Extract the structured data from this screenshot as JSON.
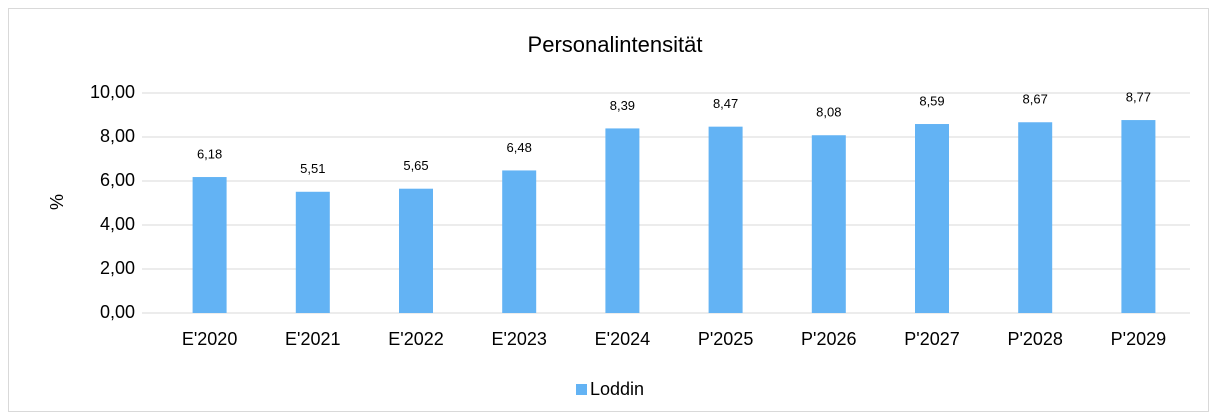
{
  "chart_data": {
    "type": "bar",
    "title": "Personalintensität",
    "y_label": "%",
    "categories": [
      "E'2020",
      "E'2021",
      "E'2022",
      "E'2023",
      "E'2024",
      "P'2025",
      "P'2026",
      "P'2027",
      "P'2028",
      "P'2029"
    ],
    "series": [
      {
        "name": "Loddin",
        "color": "#63b3f4",
        "values": [
          6.18,
          5.51,
          5.65,
          6.48,
          8.39,
          8.47,
          8.08,
          8.59,
          8.67,
          8.77
        ],
        "value_labels": [
          "6,18",
          "5,51",
          "5,65",
          "6,48",
          "8,39",
          "8,47",
          "8,08",
          "8,59",
          "8,67",
          "8,77"
        ]
      }
    ],
    "ylim": [
      0,
      10
    ],
    "yticks": [
      {
        "value": 0,
        "label": "0,00"
      },
      {
        "value": 2,
        "label": "2,00"
      },
      {
        "value": 4,
        "label": "4,00"
      },
      {
        "value": 6,
        "label": "6,00"
      },
      {
        "value": 8,
        "label": "8,00"
      },
      {
        "value": 10,
        "label": "10,00"
      }
    ],
    "grid": true,
    "legend": "bottom"
  }
}
